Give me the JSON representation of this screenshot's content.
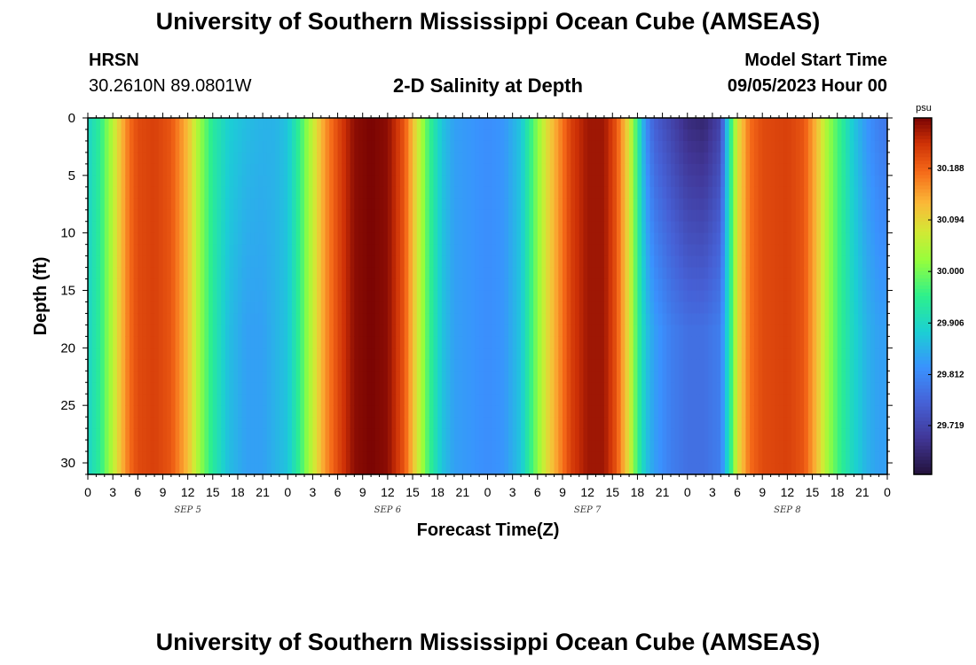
{
  "page": {
    "title_top": "University of Southern Mississippi Ocean Cube (AMSEAS)",
    "title_bottom": "University of Southern Mississippi Ocean Cube (AMSEAS)",
    "station_name": "HRSN",
    "station_coords": "30.2610N  89.0801W",
    "plot_title": "2-D Salinity at Depth",
    "model_start_label": "Model Start Time",
    "model_start_value": "09/05/2023 Hour 00",
    "colorbar_unit": "psu"
  },
  "chart_data": {
    "type": "heatmap",
    "title": "2-D Salinity at Depth",
    "xlabel": "Forecast Time(Z)",
    "ylabel": "Depth (ft)",
    "x_tick_labels": [
      "0",
      "3",
      "6",
      "9",
      "12",
      "15",
      "18",
      "21",
      "0",
      "3",
      "6",
      "9",
      "12",
      "15",
      "18",
      "21",
      "0",
      "3",
      "6",
      "9",
      "12",
      "15",
      "18",
      "21",
      "0",
      "3",
      "6",
      "9",
      "12",
      "15",
      "18",
      "21",
      "0"
    ],
    "x_range_hours": [
      0,
      96
    ],
    "day_labels": [
      {
        "label": "SEP 5",
        "hour": 12
      },
      {
        "label": "SEP 6",
        "hour": 36
      },
      {
        "label": "SEP 7",
        "hour": 60
      },
      {
        "label": "SEP 8",
        "hour": 84
      }
    ],
    "y_ticks": [
      0,
      5,
      10,
      15,
      20,
      25,
      30
    ],
    "ylim": [
      31,
      0
    ],
    "unit": "psu",
    "colorbar_ticks": [
      30.188,
      30.094,
      30.0,
      29.906,
      29.812,
      29.719
    ],
    "colorbar_range": [
      29.63,
      30.28
    ],
    "salinity_surface_by_hour": [
      [
        0,
        29.9
      ],
      [
        1.5,
        29.95
      ],
      [
        3,
        30.05
      ],
      [
        4,
        30.12
      ],
      [
        5,
        30.18
      ],
      [
        6,
        30.21
      ],
      [
        8,
        30.22
      ],
      [
        10,
        30.2
      ],
      [
        12,
        30.12
      ],
      [
        13.5,
        30.02
      ],
      [
        15,
        29.94
      ],
      [
        17,
        29.89
      ],
      [
        19,
        29.87
      ],
      [
        21,
        29.86
      ],
      [
        22.5,
        29.86
      ],
      [
        24,
        29.88
      ],
      [
        25.5,
        29.96
      ],
      [
        27,
        30.06
      ],
      [
        28.5,
        30.15
      ],
      [
        30,
        30.21
      ],
      [
        32,
        30.27
      ],
      [
        34,
        30.28
      ],
      [
        36,
        30.27
      ],
      [
        38,
        30.2
      ],
      [
        39.5,
        30.08
      ],
      [
        41,
        29.96
      ],
      [
        42.5,
        29.88
      ],
      [
        44,
        29.84
      ],
      [
        46,
        29.83
      ],
      [
        48,
        29.82
      ],
      [
        50,
        29.83
      ],
      [
        52,
        29.88
      ],
      [
        53.5,
        29.98
      ],
      [
        55,
        30.08
      ],
      [
        56.5,
        30.15
      ],
      [
        58,
        30.22
      ],
      [
        60,
        30.26
      ],
      [
        62,
        30.26
      ],
      [
        63.5,
        30.2
      ],
      [
        65,
        30.08
      ],
      [
        66,
        29.95
      ],
      [
        67,
        29.82
      ],
      [
        68,
        29.76
      ],
      [
        70,
        29.72
      ],
      [
        72,
        29.68
      ],
      [
        74,
        29.67
      ],
      [
        76,
        29.72
      ],
      [
        77,
        29.92
      ],
      [
        78,
        30.08
      ],
      [
        79.5,
        30.18
      ],
      [
        81,
        30.21
      ],
      [
        84,
        30.22
      ],
      [
        86,
        30.2
      ],
      [
        87.5,
        30.12
      ],
      [
        89,
        30.02
      ],
      [
        90.5,
        29.95
      ],
      [
        92,
        29.88
      ],
      [
        93.5,
        29.83
      ],
      [
        95,
        29.8
      ],
      [
        96,
        29.79
      ]
    ],
    "salinity_bottom_by_hour": [
      [
        0,
        29.9
      ],
      [
        1.5,
        29.95
      ],
      [
        3,
        30.05
      ],
      [
        4,
        30.12
      ],
      [
        5,
        30.18
      ],
      [
        6,
        30.21
      ],
      [
        8,
        30.22
      ],
      [
        10,
        30.2
      ],
      [
        12,
        30.12
      ],
      [
        13.5,
        30.02
      ],
      [
        15,
        29.94
      ],
      [
        17,
        29.87
      ],
      [
        19,
        29.84
      ],
      [
        21,
        29.84
      ],
      [
        22.5,
        29.86
      ],
      [
        24,
        29.88
      ],
      [
        25.5,
        29.96
      ],
      [
        27,
        30.06
      ],
      [
        28.5,
        30.15
      ],
      [
        30,
        30.21
      ],
      [
        32,
        30.27
      ],
      [
        34,
        30.28
      ],
      [
        36,
        30.27
      ],
      [
        38,
        30.2
      ],
      [
        39.5,
        30.08
      ],
      [
        41,
        29.96
      ],
      [
        42.5,
        29.88
      ],
      [
        44,
        29.84
      ],
      [
        46,
        29.83
      ],
      [
        48,
        29.82
      ],
      [
        50,
        29.83
      ],
      [
        52,
        29.88
      ],
      [
        53.5,
        29.98
      ],
      [
        55,
        30.08
      ],
      [
        56.5,
        30.15
      ],
      [
        58,
        30.22
      ],
      [
        60,
        30.26
      ],
      [
        62,
        30.26
      ],
      [
        63.5,
        30.2
      ],
      [
        65,
        30.08
      ],
      [
        66,
        29.96
      ],
      [
        67,
        29.88
      ],
      [
        68,
        29.84
      ],
      [
        70,
        29.8
      ],
      [
        72,
        29.78
      ],
      [
        74,
        29.78
      ],
      [
        76,
        29.8
      ],
      [
        77,
        29.92
      ],
      [
        78,
        30.08
      ],
      [
        79.5,
        30.18
      ],
      [
        81,
        30.21
      ],
      [
        84,
        30.22
      ],
      [
        86,
        30.2
      ],
      [
        87.5,
        30.12
      ],
      [
        89,
        30.02
      ],
      [
        90.5,
        29.95
      ],
      [
        92,
        29.9
      ],
      [
        93.5,
        29.86
      ],
      [
        95,
        29.84
      ],
      [
        96,
        29.84
      ]
    ]
  }
}
